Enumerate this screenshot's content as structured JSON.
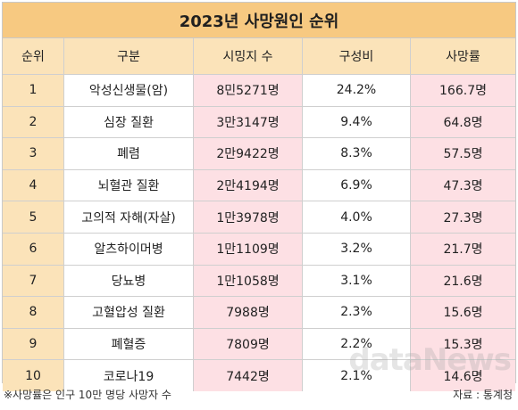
{
  "title": "2023년 사망원인 순위",
  "headers": [
    "순위",
    "구분",
    "시밍지 수",
    "구성비",
    "사망률"
  ],
  "rows": [
    {
      "rank": "1",
      "cause": "악성신생물(암)",
      "deaths": "8민5271명",
      "share": "24.2%",
      "rate": "166.7명"
    },
    {
      "rank": "2",
      "cause": "심장 질환",
      "deaths": "3만3147명",
      "share": "9.4%",
      "rate": "64.8명"
    },
    {
      "rank": "3",
      "cause": "폐렴",
      "deaths": "2만9422명",
      "share": "8.3%",
      "rate": "57.5명"
    },
    {
      "rank": "4",
      "cause": "뇌혈관 질환",
      "deaths": "2만4194명",
      "share": "6.9%",
      "rate": "47.3명"
    },
    {
      "rank": "5",
      "cause": "고의적 자해(자살)",
      "deaths": "1만3978명",
      "share": "4.0%",
      "rate": "27.3명"
    },
    {
      "rank": "6",
      "cause": "알츠하이머병",
      "deaths": "1만1109명",
      "share": "3.2%",
      "rate": "21.7명"
    },
    {
      "rank": "7",
      "cause": "당뇨병",
      "deaths": "1만1058명",
      "share": "3.1%",
      "rate": "21.6명"
    },
    {
      "rank": "8",
      "cause": "고혈압성 질환",
      "deaths": "7988명",
      "share": "2.3%",
      "rate": "15.6명"
    },
    {
      "rank": "9",
      "cause": "폐혈증",
      "deaths": "7809명",
      "share": "2.2%",
      "rate": "15.3명"
    },
    {
      "rank": "10",
      "cause": "코로나19",
      "deaths": "7442명",
      "share": "2.1%",
      "rate": "14.6명"
    }
  ],
  "footnote": "※사망률은 인구 10만 명당 사망자 수",
  "source": "자료 : 통계청",
  "watermark": "dataNews",
  "colors": {
    "title_bg": "#f7c981",
    "header_bg": "#fbe3b9",
    "pink_cell": "#fde0e4"
  }
}
